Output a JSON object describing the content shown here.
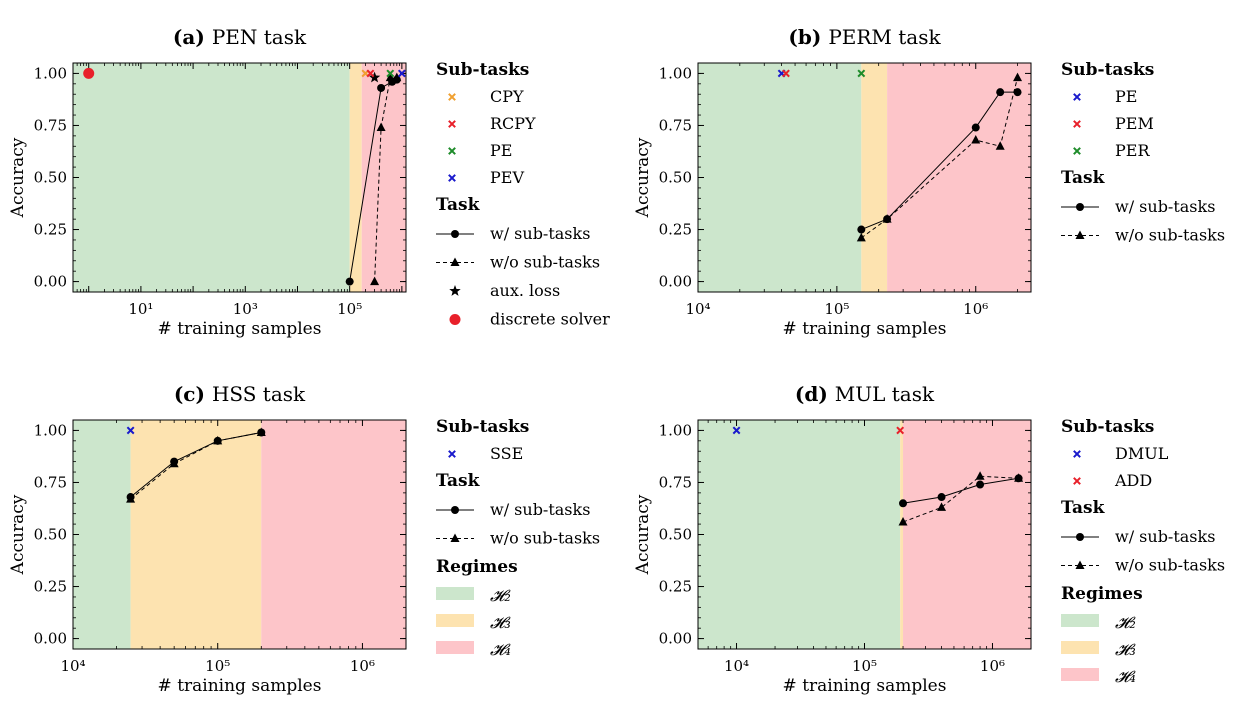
{
  "chart_data": [
    {
      "type": "line",
      "title": "PEN task",
      "panel_label": "(a)",
      "xlabel": "# training samples",
      "ylabel": "Accuracy",
      "xscale": "log",
      "xlim": [
        0.5,
        1200000
      ],
      "ylim": [
        -0.05,
        1.05
      ],
      "x_tick_labels": [
        "10^1",
        "10^3",
        "10^5"
      ],
      "y_tick_labels": [
        "0.00",
        "0.25",
        "0.50",
        "0.75",
        "1.00"
      ],
      "regimes": [
        {
          "label": "𝓗₂",
          "from": 0.5,
          "to": 100000,
          "color": "#cce6cc"
        },
        {
          "label": "𝓗₃",
          "from": 100000,
          "to": 170000,
          "color": "#fde3b0"
        },
        {
          "label": "𝓗₄",
          "from": 170000,
          "to": 1200000,
          "color": "#fdc5c9"
        }
      ],
      "series": [
        {
          "name": "w/ sub-tasks",
          "style": "solid",
          "marker": "circle",
          "x": [
            100000,
            400000,
            650000,
            800000
          ],
          "y": [
            0.0,
            0.93,
            0.96,
            0.97
          ]
        },
        {
          "name": "w/o sub-tasks",
          "style": "dashed",
          "marker": "triangle",
          "x": [
            300000,
            400000,
            600000,
            800000
          ],
          "y": [
            0.0,
            0.74,
            0.98,
            0.98
          ]
        },
        {
          "name": "aux. loss",
          "style": "none",
          "marker": "star",
          "x": [
            300000
          ],
          "y": [
            0.98
          ]
        },
        {
          "name": "discrete solver",
          "style": "none",
          "marker": "bigdot",
          "color": "#e8202a",
          "x": [
            1
          ],
          "y": [
            1.0
          ]
        }
      ],
      "subtasks": [
        {
          "name": "CPY",
          "color": "#f0a030",
          "x": 200000,
          "y": 1.0
        },
        {
          "name": "RCPY",
          "color": "#e8202a",
          "x": 250000,
          "y": 1.0
        },
        {
          "name": "PE",
          "color": "#1e8c2a",
          "x": 600000,
          "y": 1.0
        },
        {
          "name": "PEV",
          "color": "#1a1acc",
          "x": 1000000,
          "y": 1.0
        }
      ],
      "legend": {
        "subtasks_header": "Sub-tasks",
        "task_header": "Task",
        "task_items": [
          "w/ sub-tasks",
          "w/o sub-tasks",
          "aux. loss",
          "discrete solver"
        ],
        "placement": "outside-right"
      }
    },
    {
      "type": "line",
      "title": "PERM task",
      "panel_label": "(b)",
      "xlabel": "# training samples",
      "ylabel": "Accuracy",
      "xscale": "log",
      "xlim": [
        10000,
        2500000
      ],
      "ylim": [
        -0.05,
        1.05
      ],
      "x_tick_labels": [
        "10^4",
        "10^5",
        "10^6"
      ],
      "y_tick_labels": [
        "0.00",
        "0.25",
        "0.50",
        "0.75",
        "1.00"
      ],
      "regimes": [
        {
          "label": "𝓗₂",
          "from": 10000,
          "to": 150000,
          "color": "#cce6cc"
        },
        {
          "label": "𝓗₃",
          "from": 150000,
          "to": 230000,
          "color": "#fde3b0"
        },
        {
          "label": "𝓗₄",
          "from": 230000,
          "to": 2500000,
          "color": "#fdc5c9"
        }
      ],
      "series": [
        {
          "name": "w/ sub-tasks",
          "style": "solid",
          "marker": "circle",
          "x": [
            150000,
            230000,
            1000000,
            1500000,
            2000000
          ],
          "y": [
            0.25,
            0.3,
            0.74,
            0.91,
            0.91
          ]
        },
        {
          "name": "w/o sub-tasks",
          "style": "dashed",
          "marker": "triangle",
          "x": [
            150000,
            230000,
            1000000,
            1500000,
            2000000
          ],
          "y": [
            0.21,
            0.3,
            0.68,
            0.65,
            0.98
          ]
        }
      ],
      "subtasks": [
        {
          "name": "PE",
          "color": "#1a1acc",
          "x": 40000,
          "y": 1.0
        },
        {
          "name": "PEM",
          "color": "#e8202a",
          "x": 43000,
          "y": 1.0
        },
        {
          "name": "PER",
          "color": "#1e8c2a",
          "x": 150000,
          "y": 1.0
        }
      ],
      "legend": {
        "subtasks_header": "Sub-tasks",
        "task_header": "Task",
        "task_items": [
          "w/ sub-tasks",
          "w/o sub-tasks"
        ],
        "placement": "outside-right"
      }
    },
    {
      "type": "line",
      "title": "HSS task",
      "panel_label": "(c)",
      "xlabel": "# training samples",
      "ylabel": "Accuracy",
      "xscale": "log",
      "xlim": [
        10000,
        2000000
      ],
      "ylim": [
        -0.05,
        1.05
      ],
      "x_tick_labels": [
        "10^4",
        "10^5",
        "10^6"
      ],
      "y_tick_labels": [
        "0.00",
        "0.25",
        "0.50",
        "0.75",
        "1.00"
      ],
      "regimes": [
        {
          "label": "𝓗₂",
          "from": 10000,
          "to": 25000,
          "color": "#cce6cc"
        },
        {
          "label": "𝓗₃",
          "from": 25000,
          "to": 200000,
          "color": "#fde3b0"
        },
        {
          "label": "𝓗₄",
          "from": 200000,
          "to": 2000000,
          "color": "#fdc5c9"
        }
      ],
      "series": [
        {
          "name": "w/ sub-tasks",
          "style": "solid",
          "marker": "circle",
          "x": [
            25000,
            50000,
            100000,
            200000
          ],
          "y": [
            0.68,
            0.85,
            0.95,
            0.99
          ]
        },
        {
          "name": "w/o sub-tasks",
          "style": "dashed",
          "marker": "triangle",
          "x": [
            25000,
            50000,
            100000,
            200000
          ],
          "y": [
            0.67,
            0.84,
            0.95,
            0.99
          ]
        }
      ],
      "subtasks": [
        {
          "name": "SSE",
          "color": "#1a1acc",
          "x": 25000,
          "y": 1.0
        }
      ],
      "legend": {
        "subtasks_header": "Sub-tasks",
        "task_header": "Task",
        "task_items": [
          "w/ sub-tasks",
          "w/o sub-tasks"
        ],
        "regimes_header": "Regimes",
        "placement": "outside-right"
      }
    },
    {
      "type": "line",
      "title": "MUL task",
      "panel_label": "(d)",
      "xlabel": "# training samples",
      "ylabel": "Accuracy",
      "xscale": "log",
      "xlim": [
        5000,
        2000000
      ],
      "ylim": [
        -0.05,
        1.05
      ],
      "x_tick_labels": [
        "10^4",
        "10^5",
        "10^6"
      ],
      "y_tick_labels": [
        "0.00",
        "0.25",
        "0.50",
        "0.75",
        "1.00"
      ],
      "regimes": [
        {
          "label": "𝓗₂",
          "from": 5000,
          "to": 190000,
          "color": "#cce6cc"
        },
        {
          "label": "𝓗₃",
          "from": 190000,
          "to": 200000,
          "color": "#fde3b0"
        },
        {
          "label": "𝓗₄",
          "from": 200000,
          "to": 2000000,
          "color": "#fdc5c9"
        }
      ],
      "series": [
        {
          "name": "w/ sub-tasks",
          "style": "solid",
          "marker": "circle",
          "x": [
            200000,
            400000,
            800000,
            1600000
          ],
          "y": [
            0.65,
            0.68,
            0.74,
            0.77
          ]
        },
        {
          "name": "w/o sub-tasks",
          "style": "dashed",
          "marker": "triangle",
          "x": [
            200000,
            400000,
            800000,
            1600000
          ],
          "y": [
            0.56,
            0.63,
            0.78,
            0.77
          ]
        }
      ],
      "subtasks": [
        {
          "name": "DMUL",
          "color": "#1a1acc",
          "x": 10000,
          "y": 1.0
        },
        {
          "name": "ADD",
          "color": "#e8202a",
          "x": 190000,
          "y": 1.0
        }
      ],
      "legend": {
        "subtasks_header": "Sub-tasks",
        "task_header": "Task",
        "task_items": [
          "w/ sub-tasks",
          "w/o sub-tasks"
        ],
        "regimes_header": "Regimes",
        "placement": "outside-right"
      }
    }
  ]
}
